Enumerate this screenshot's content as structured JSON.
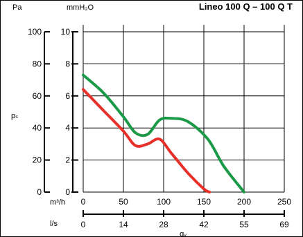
{
  "chart_data": {
    "type": "line",
    "title": "Lineo 100 Q  – 100 Q T",
    "unit_pa": "Pa",
    "unit_mmh2o": "mmH₂O",
    "unit_m3h": "m³/h",
    "unit_ls": "l/s",
    "ylabel": "pₛ",
    "xlabel": "qᵥ",
    "x_ticks": [
      "0",
      "50",
      "100",
      "150",
      "200",
      "250"
    ],
    "pa_ticks": [
      "0",
      "20",
      "40",
      "60",
      "80",
      "100"
    ],
    "mmh2o_ticks": [
      "0",
      "2",
      "4",
      "6",
      "8",
      "10"
    ],
    "ls_ticks": [
      "0",
      "14",
      "28",
      "42",
      "55",
      "69"
    ],
    "xlim": [
      0,
      250
    ],
    "ylim": [
      0,
      100
    ],
    "grid": true,
    "series": [
      {
        "color": "#e8302a",
        "x": [
          0,
          25,
          50,
          65,
          80,
          95,
          110,
          130,
          150,
          157
        ],
        "y": [
          64,
          51,
          38,
          29,
          30,
          33,
          24,
          12,
          2,
          0
        ]
      },
      {
        "color": "#1a9a47",
        "x": [
          0,
          25,
          50,
          65,
          80,
          95,
          110,
          130,
          155,
          175,
          200
        ],
        "y": [
          73,
          62,
          47,
          37,
          36,
          45,
          46,
          44,
          33,
          16,
          0
        ]
      }
    ]
  }
}
